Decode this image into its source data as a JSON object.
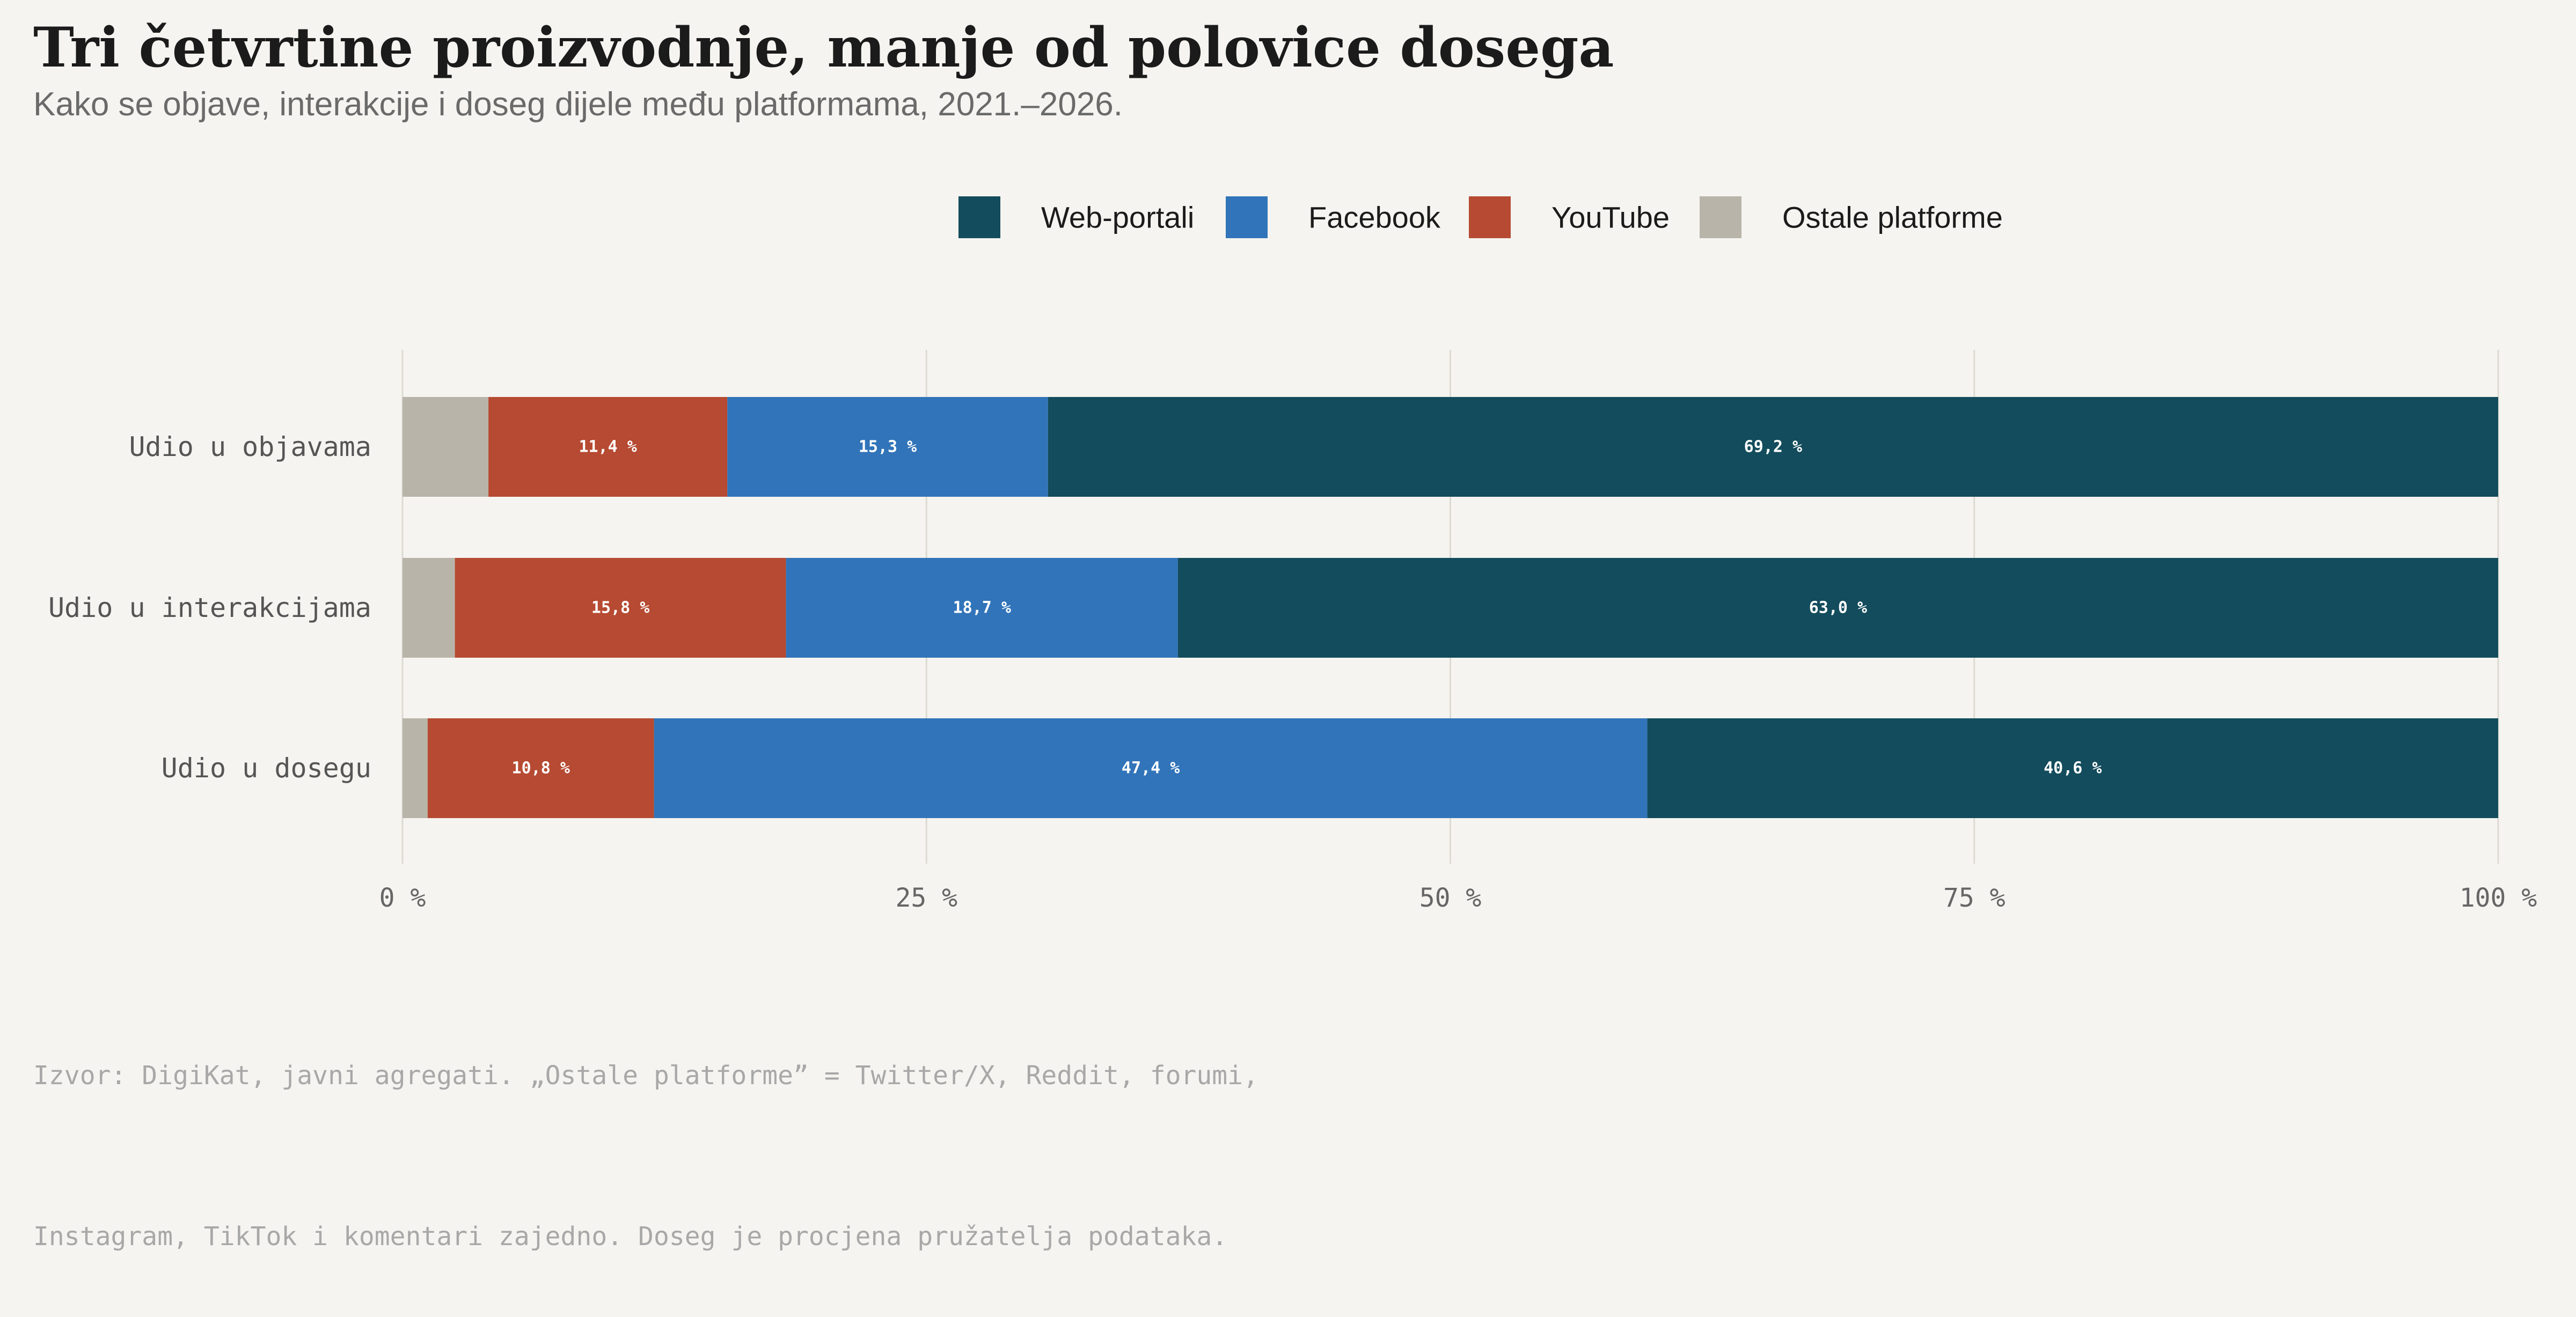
{
  "chart_data": {
    "type": "bar",
    "orientation": "horizontal",
    "stacked": true,
    "title": "Tri četvrtine proizvodnje, manje od polovice dosega",
    "subtitle": "Kako se objave, interakcije i doseg dijele među platformama, 2021.–2026.",
    "categories": [
      "Udio u objavama",
      "Udio u interakcijama",
      "Udio u dosegu"
    ],
    "series": [
      {
        "name": "Ostale platforme",
        "color": "#b9b4a9",
        "values": [
          4.1,
          2.5,
          1.2
        ],
        "labels": [
          "",
          "",
          ""
        ]
      },
      {
        "name": "YouTube",
        "color": "#b64a32",
        "values": [
          11.4,
          15.8,
          10.8
        ],
        "labels": [
          "11,4 %",
          "15,8 %",
          "10,8 %"
        ]
      },
      {
        "name": "Facebook",
        "color": "#3174b9",
        "values": [
          15.3,
          18.7,
          47.4
        ],
        "labels": [
          "15,3 %",
          "18,7 %",
          "47,4 %"
        ]
      },
      {
        "name": "Web-portali",
        "color": "#134c5c",
        "values": [
          69.2,
          63.0,
          40.6
        ],
        "labels": [
          "69,2 %",
          "63,0 %",
          "40,6 %"
        ]
      }
    ],
    "legend_order": [
      "Web-portali",
      "Facebook",
      "YouTube",
      "Ostale platforme"
    ],
    "legend_position": "top-center",
    "xlim": [
      0,
      100
    ],
    "x_ticks": [
      0,
      25,
      50,
      75,
      100
    ],
    "x_tick_labels": [
      "0 %",
      "25 %",
      "50 %",
      "75 %",
      "100 %"
    ],
    "grid": "vertical",
    "xlabel": "",
    "ylabel": ""
  },
  "footnote": {
    "line1": "Izvor: DigiKat, javni agregati. „Ostale platforme” = Twitter/X, Reddit, forumi,",
    "line2": "Instagram, TikTok i komentari zajedno. Doseg je procjena pružatelja podataka."
  }
}
